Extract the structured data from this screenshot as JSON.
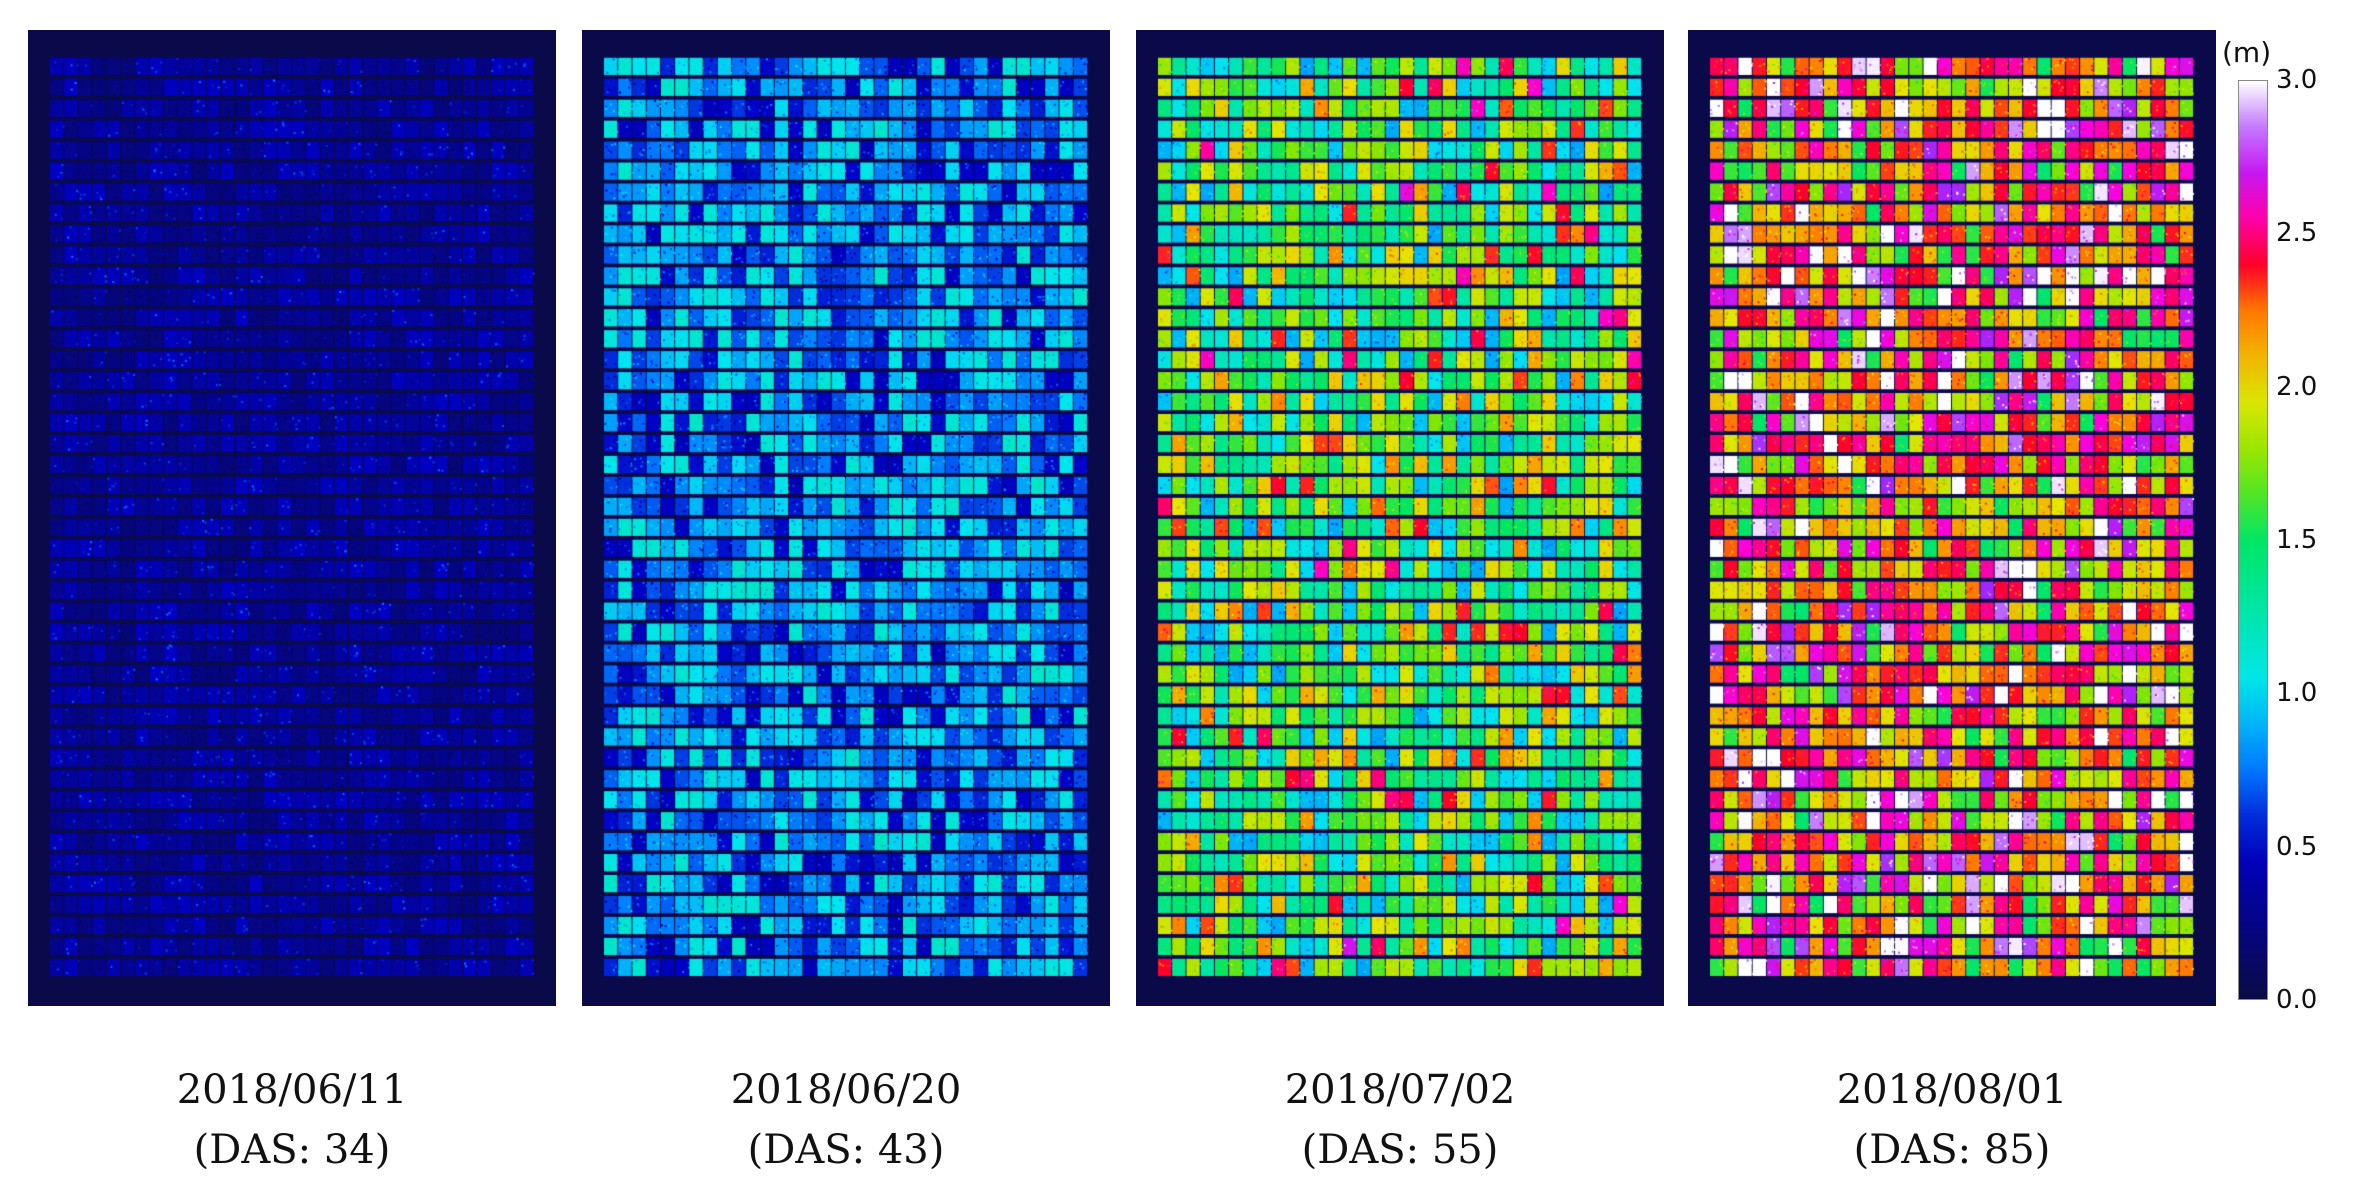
{
  "panels": [
    {
      "date": "2018/06/11",
      "das": "(DAS: 34)",
      "level": 0.35
    },
    {
      "date": "2018/06/20",
      "das": "(DAS: 43)",
      "level": 0.8
    },
    {
      "date": "2018/07/02",
      "das": "(DAS: 55)",
      "level": 1.45
    },
    {
      "date": "2018/08/01",
      "das": "(DAS: 85)",
      "level": 2.05
    }
  ],
  "colorbar": {
    "unit": "(m)",
    "ticks": [
      "3.0",
      "2.5",
      "2.0",
      "1.5",
      "1.0",
      "0.5",
      "0.0"
    ],
    "min": 0.0,
    "max": 3.0
  }
}
